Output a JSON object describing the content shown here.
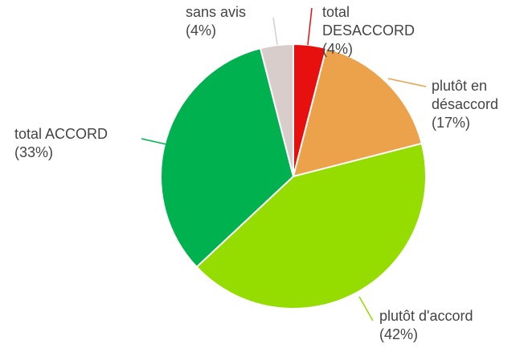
{
  "chart_data": {
    "type": "pie",
    "categories": [
      "total DESACCORD",
      "plutôt en désaccord",
      "plutôt d'accord",
      "total ACCORD",
      "sans avis"
    ],
    "values": [
      4,
      17,
      42,
      33,
      4
    ],
    "value_labels": [
      "(4%)",
      "(17%)",
      "(42%)",
      "(33%)",
      "(4%)"
    ],
    "colors": [
      "#e8100f",
      "#eba24a",
      "#95dc00",
      "#00b14f",
      "#d9cdcc"
    ]
  }
}
